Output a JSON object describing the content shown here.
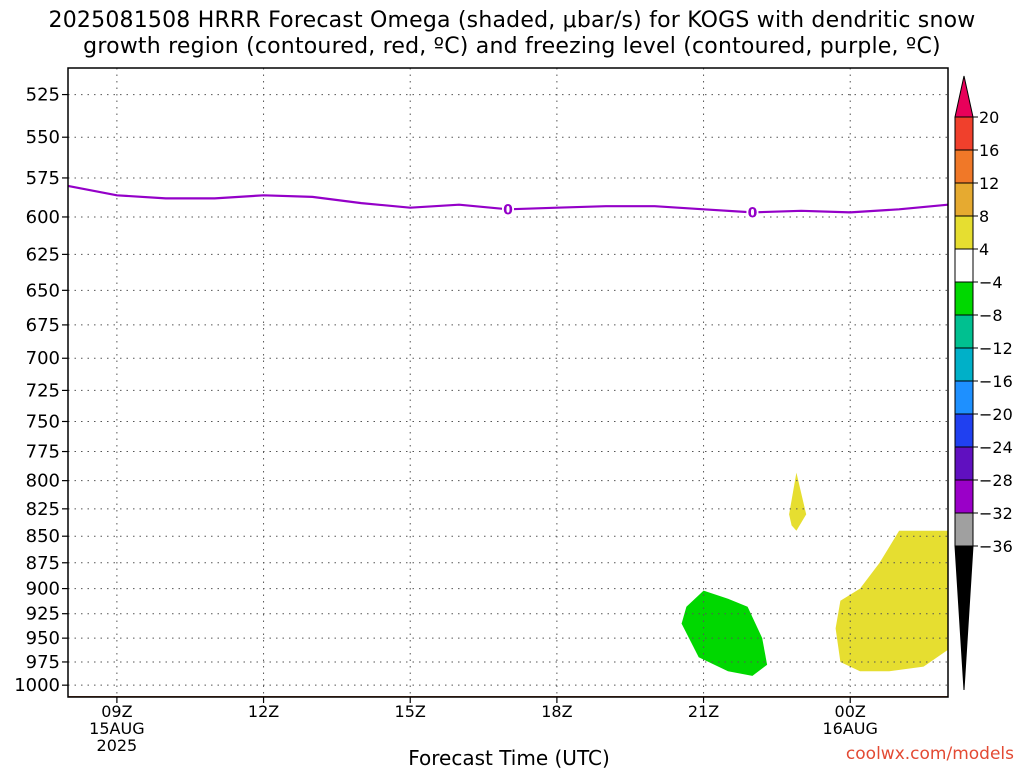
{
  "title_line1": "2025081508 HRRR Forecast Omega (shaded, μbar/s) for KOGS with dendritic snow",
  "title_line2": "growth region (contoured, red, ºC) and freezing level (contoured, purple, ºC)",
  "credit": "coolwx.com/models",
  "chart_data": {
    "type": "contour",
    "xlabel": "Forecast Time (UTC)",
    "ylabel": "",
    "x_ticks": [
      {
        "hour": 9,
        "lines": [
          "09Z",
          "15AUG",
          "2025"
        ]
      },
      {
        "hour": 12,
        "lines": [
          "12Z"
        ]
      },
      {
        "hour": 15,
        "lines": [
          "15Z"
        ]
      },
      {
        "hour": 18,
        "lines": [
          "18Z"
        ]
      },
      {
        "hour": 21,
        "lines": [
          "21Z"
        ]
      },
      {
        "hour": 24,
        "lines": [
          "00Z",
          "16AUG"
        ]
      }
    ],
    "xlim_hours": [
      8,
      26
    ],
    "y_ticks": [
      525,
      550,
      575,
      600,
      625,
      650,
      675,
      700,
      725,
      750,
      775,
      800,
      825,
      850,
      875,
      900,
      925,
      950,
      975,
      1000
    ],
    "ylim_hPa": [
      510,
      1013
    ],
    "y_scale": "log",
    "grid": true,
    "freezing_level": {
      "label": "0",
      "color": "#9400c8",
      "hours": [
        8.0,
        9.0,
        10.0,
        11.0,
        12.0,
        13.0,
        14.0,
        15.0,
        16.0,
        17.0,
        18.0,
        19.0,
        20.0,
        21.0,
        22.0,
        23.0,
        24.0,
        25.0,
        26.0
      ],
      "pressure_hPa": [
        580,
        586,
        588,
        588,
        586,
        587,
        591,
        594,
        592,
        595,
        594,
        593,
        593,
        595,
        597,
        596,
        597,
        595,
        592
      ],
      "label_hours": [
        17.0,
        22.0
      ]
    },
    "shaded_regions": [
      {
        "name": "omega >4",
        "color": "#e6de30",
        "points": [
          [
            22.9,
            793
          ],
          [
            23.1,
            830
          ],
          [
            22.9,
            845
          ],
          [
            22.8,
            840
          ],
          [
            22.75,
            830
          ]
        ]
      },
      {
        "name": "omega < -4",
        "color": "#00d800",
        "points": [
          [
            21.0,
            902
          ],
          [
            21.5,
            910
          ],
          [
            21.9,
            918
          ],
          [
            22.2,
            950
          ],
          [
            22.3,
            978
          ],
          [
            22.0,
            990
          ],
          [
            21.5,
            985
          ],
          [
            20.9,
            970
          ],
          [
            20.55,
            935
          ],
          [
            20.65,
            918
          ]
        ]
      },
      {
        "name": "omega >4",
        "color": "#e6de30",
        "points": [
          [
            25.0,
            845
          ],
          [
            26.0,
            845
          ],
          [
            26.0,
            962
          ],
          [
            25.5,
            980
          ],
          [
            24.8,
            985
          ],
          [
            24.2,
            985
          ],
          [
            23.8,
            975
          ],
          [
            23.7,
            940
          ],
          [
            23.8,
            912
          ],
          [
            24.2,
            900
          ],
          [
            24.6,
            875
          ]
        ]
      }
    ],
    "ground": {
      "color": "#a0522d",
      "pressure_hPa": 1013
    },
    "colorbar": {
      "levels": [
        "20",
        "16",
        "12",
        "8",
        "4",
        "−4",
        "−8",
        "−12",
        "−16",
        "−20",
        "−24",
        "−28",
        "−32",
        "−36"
      ],
      "colors": [
        "#e8005a",
        "#f0402c",
        "#f07828",
        "#e6aa30",
        "#e6de30",
        "#ffffff",
        "#00d800",
        "#00c090",
        "#00b0c8",
        "#1e90ff",
        "#2040f0",
        "#6010c0",
        "#9a00c8",
        "#a0a0a0",
        "#000000"
      ]
    }
  }
}
